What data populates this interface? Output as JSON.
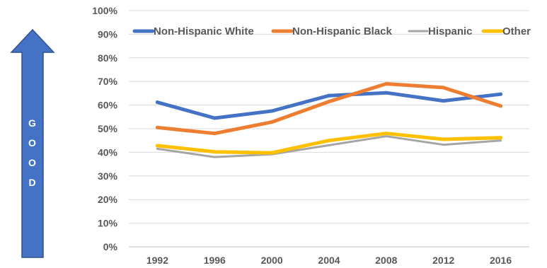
{
  "arrow": {
    "letters": [
      "G",
      "O",
      "O",
      "D"
    ],
    "color": "#4472C4"
  },
  "chart_data": {
    "type": "line",
    "title": "",
    "xlabel": "",
    "ylabel": "",
    "categories": [
      "1992",
      "1996",
      "2000",
      "2004",
      "2008",
      "2012",
      "2016"
    ],
    "y_ticks": [
      "0%",
      "10%",
      "20%",
      "30%",
      "40%",
      "50%",
      "60%",
      "70%",
      "80%",
      "90%",
      "100%"
    ],
    "ylim": [
      0,
      100
    ],
    "grid": true,
    "legend_position": "top",
    "series": [
      {
        "name": "Non-Hispanic White",
        "color": "#4472C4",
        "width": 5,
        "values": [
          61.2,
          54.5,
          57.5,
          64.0,
          65.2,
          61.8,
          64.6
        ]
      },
      {
        "name": "Non-Hispanic Black",
        "color": "#ED7D31",
        "width": 5,
        "values": [
          50.5,
          48.0,
          52.8,
          61.5,
          69.0,
          67.4,
          59.6
        ]
      },
      {
        "name": "Hispanic",
        "color": "#A5A5A5",
        "width": 3,
        "values": [
          41.5,
          38.0,
          39.2,
          43.0,
          46.8,
          43.2,
          45.0
        ]
      },
      {
        "name": "Other",
        "color": "#FFC000",
        "width": 5,
        "values": [
          42.8,
          40.2,
          39.8,
          45.0,
          48.0,
          45.5,
          46.2
        ]
      }
    ]
  }
}
